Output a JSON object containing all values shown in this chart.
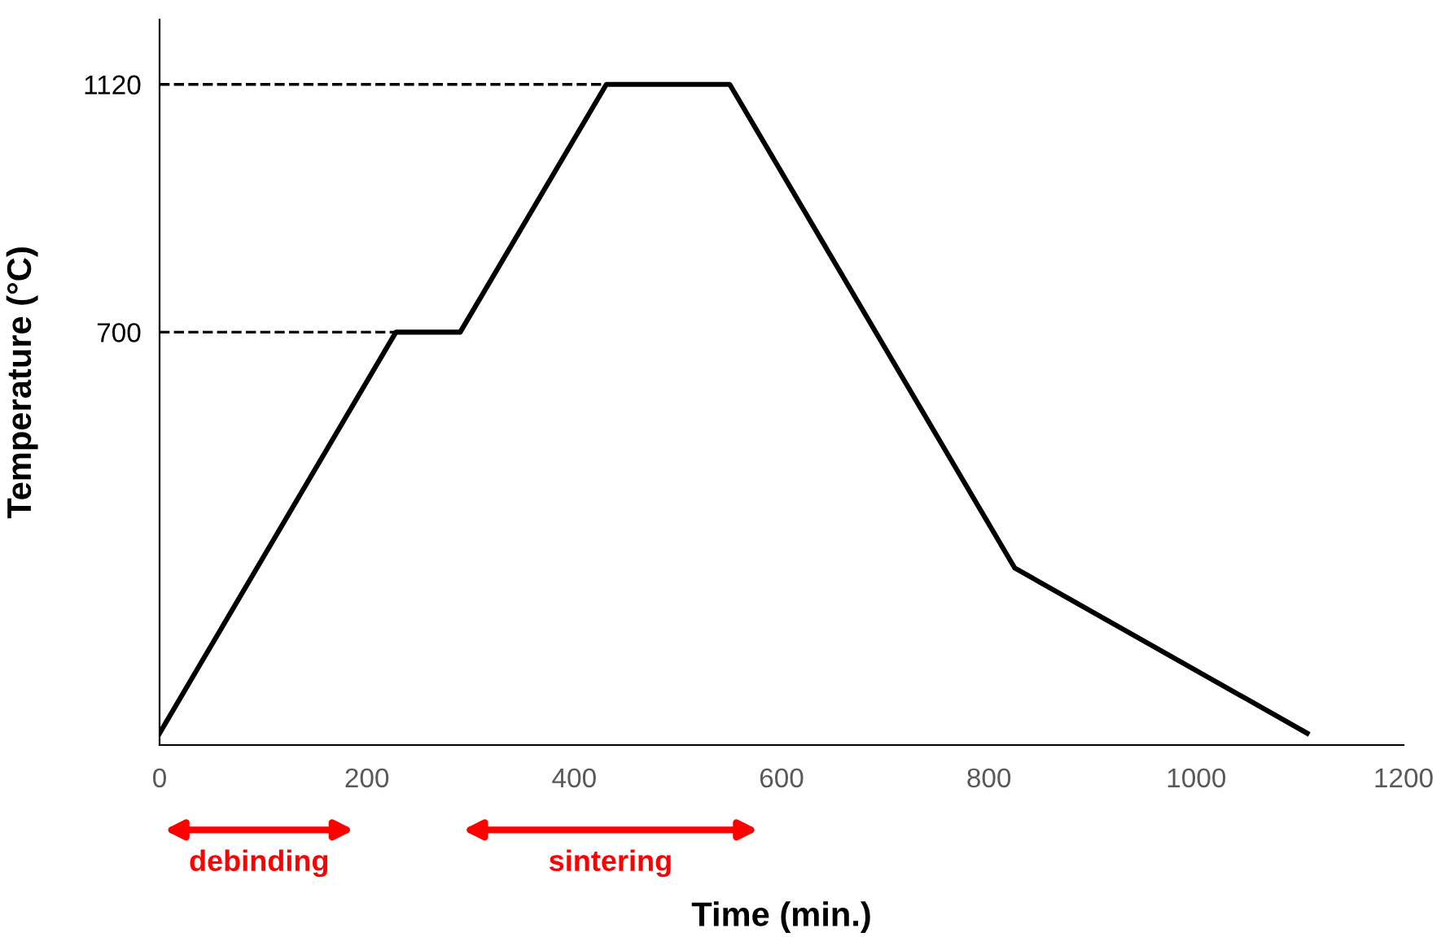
{
  "chart_data": {
    "type": "line",
    "xlabel": "Time (min.)",
    "ylabel": "Temperature (°C)",
    "x": [
      0,
      228,
      290,
      431,
      550,
      825,
      1107
    ],
    "series": [
      {
        "color": "#000000",
        "values": [
          20,
          700,
          700,
          1120,
          1120,
          300,
          20
        ]
      }
    ],
    "xlim": [
      0,
      1200
    ],
    "ylim": [
      0,
      1230
    ],
    "xticks": [
      0,
      200,
      400,
      600,
      800,
      1000,
      1200
    ],
    "yticks": [
      700,
      1120
    ],
    "ref_lines": [
      {
        "axis": "y",
        "value": 700,
        "color": "#000000",
        "line_style": "dashed"
      },
      {
        "axis": "y",
        "value": 1120,
        "color": "#000000",
        "line_style": "dashed"
      }
    ],
    "annotations": [
      "debinding",
      "sintering"
    ],
    "grid": false,
    "legend": false,
    "marker": "none",
    "line_style": "solid"
  }
}
